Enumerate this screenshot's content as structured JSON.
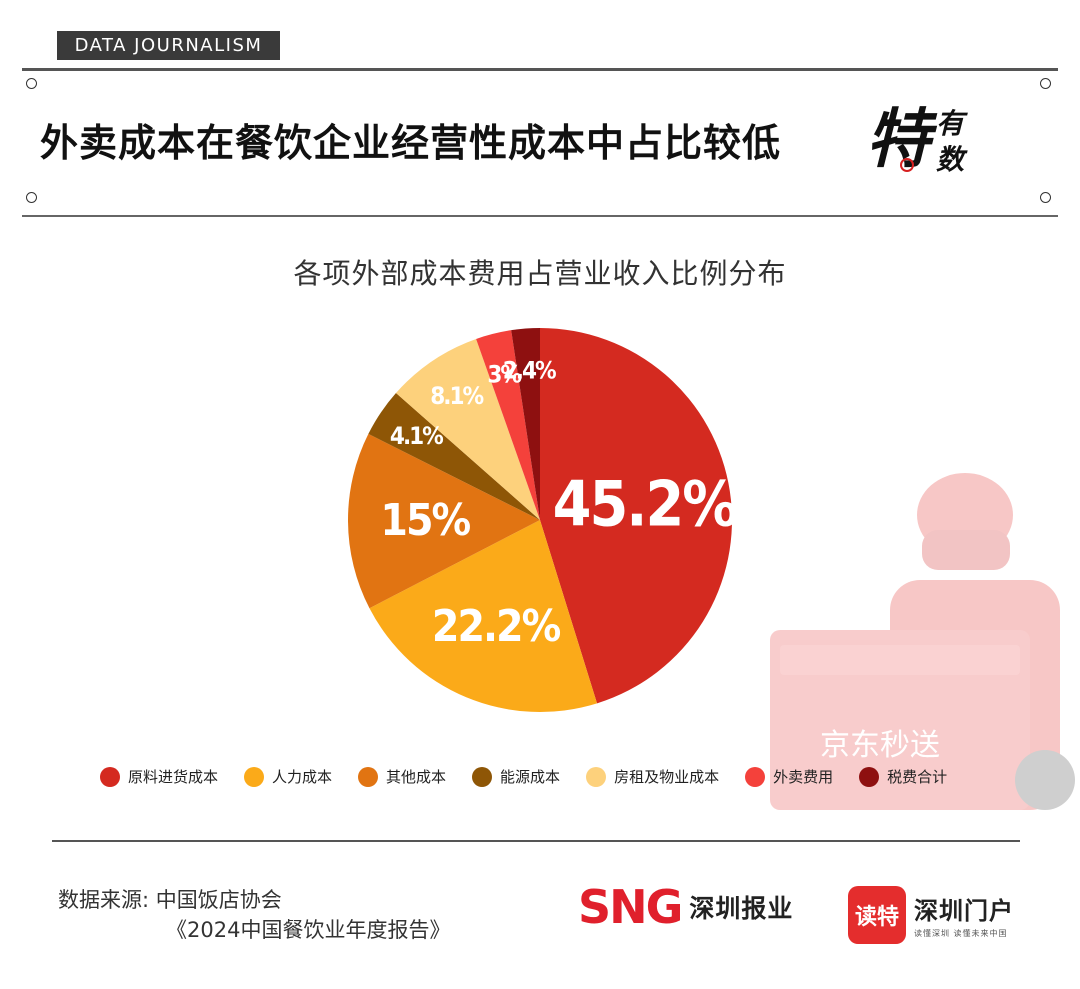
{
  "tag": "DATA JOURNALISM",
  "headline": "外卖成本在餐饮企业经营性成本中占比较低",
  "badge": {
    "main": "特",
    "top": "有",
    "bottom": "数"
  },
  "colors": {
    "accent": "#d62020",
    "rule": "#555555"
  },
  "chart_data": {
    "type": "pie",
    "title": "各项外部成本费用占营业收入比例分布",
    "unit": "%",
    "slices": [
      {
        "label": "原料进货成本",
        "value": 45.2,
        "display": "45.2%",
        "color": "#d42a20"
      },
      {
        "label": "人力成本",
        "value": 22.2,
        "display": "22.2%",
        "color": "#fbaa19"
      },
      {
        "label": "其他成本",
        "value": 15,
        "display": "15%",
        "color": "#e17412"
      },
      {
        "label": "能源成本",
        "value": 4.1,
        "display": "4.1%",
        "color": "#8e5606"
      },
      {
        "label": "房租及物业成本",
        "value": 8.1,
        "display": "8.1%",
        "color": "#fdd17c"
      },
      {
        "label": "外卖费用",
        "value": 3,
        "display": "3%",
        "color": "#f4413b"
      },
      {
        "label": "税费合计",
        "value": 2.4,
        "display": "2.4%",
        "color": "#8e1010"
      }
    ],
    "legend_position": "bottom"
  },
  "source": {
    "line1": "数据来源: 中国饭店协会",
    "line2": "《2024中国餐饮业年度报告》"
  },
  "logos": {
    "sng_mark": "SNG",
    "sng_name": "深圳报业",
    "dute_mark": "读特",
    "dute_name": "深圳门户",
    "dute_slogan": "读懂深圳 读懂未来中国"
  },
  "icons": {
    "badge": "magnifier-icon",
    "legend": "circle-swatch"
  }
}
